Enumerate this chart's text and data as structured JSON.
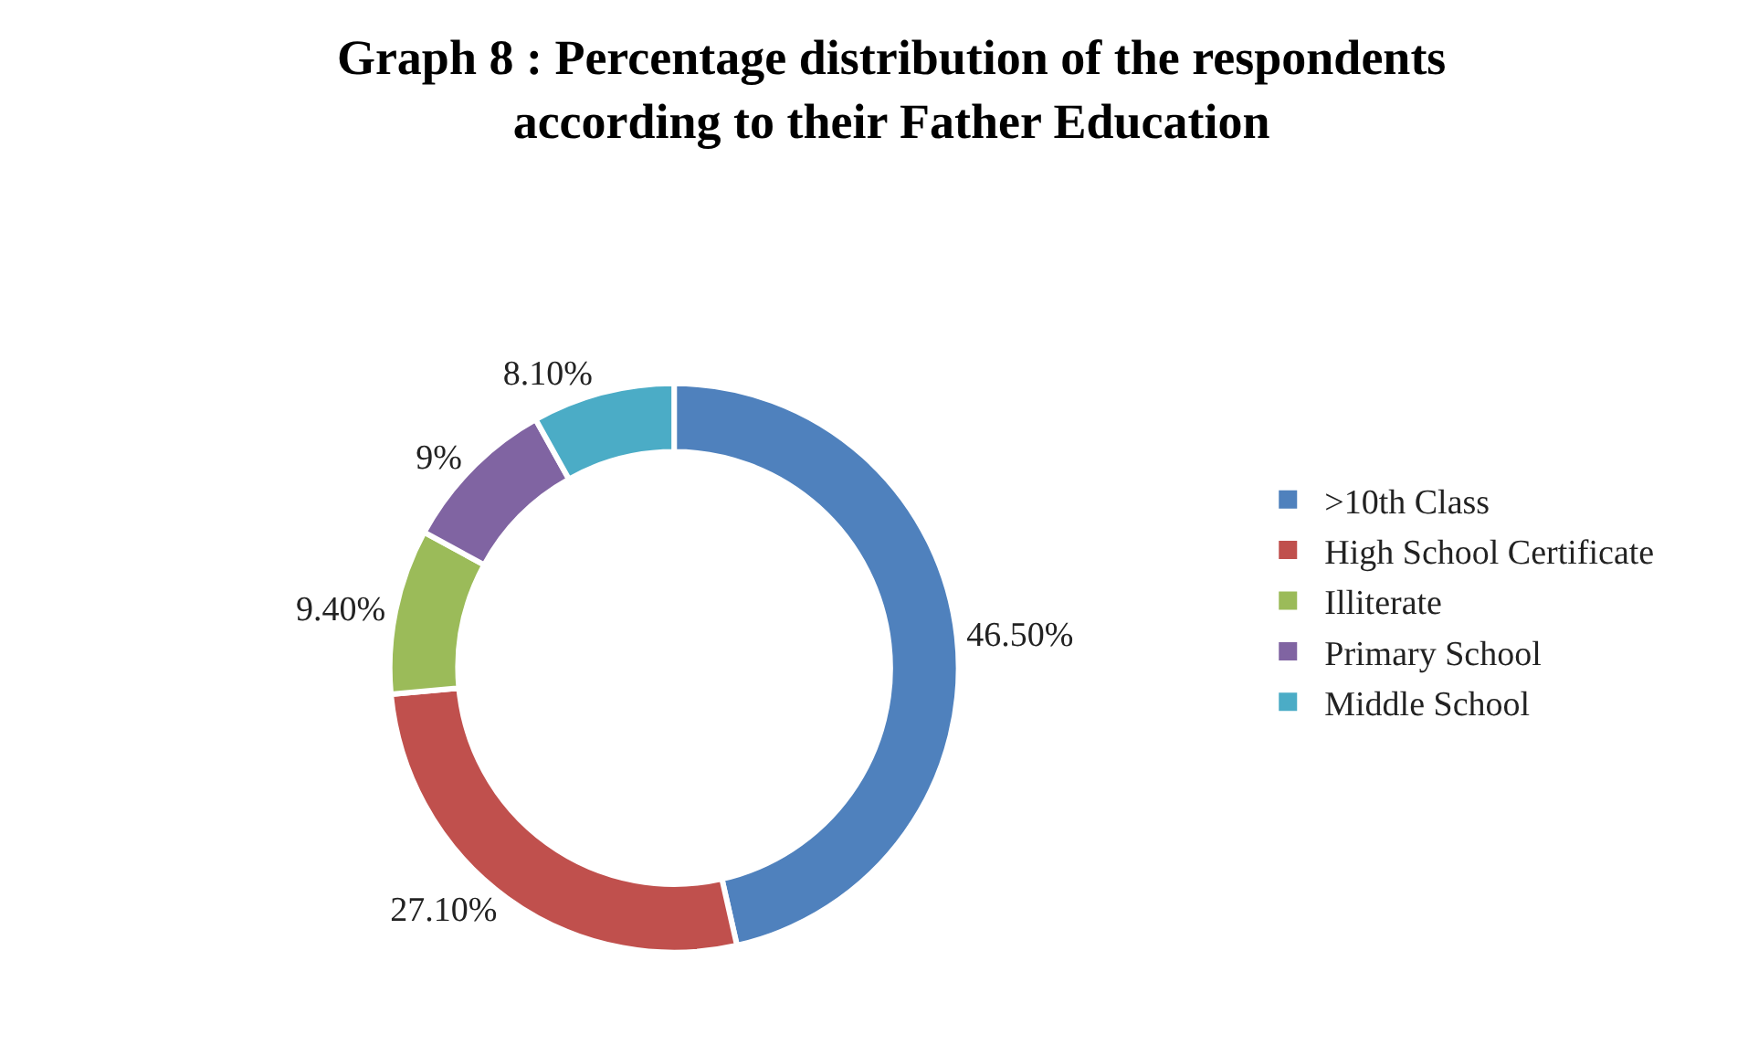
{
  "chart_data": {
    "type": "donut",
    "title": "Graph 8 : Percentage distribution of the respondents according to their Father Education",
    "categories": [
      ">10th Class",
      "High School Certificate",
      "Illiterate",
      "Primary School",
      "Middle School"
    ],
    "values": [
      46.5,
      27.1,
      9.4,
      9,
      8.1
    ],
    "colors": [
      "#4f81bd",
      "#c0504d",
      "#9bbb59",
      "#8064a2",
      "#4bacc6"
    ],
    "value_labels": [
      "46.50%",
      "27.10%",
      "9.40%",
      "9%",
      "8.10%"
    ],
    "legend": "right"
  }
}
